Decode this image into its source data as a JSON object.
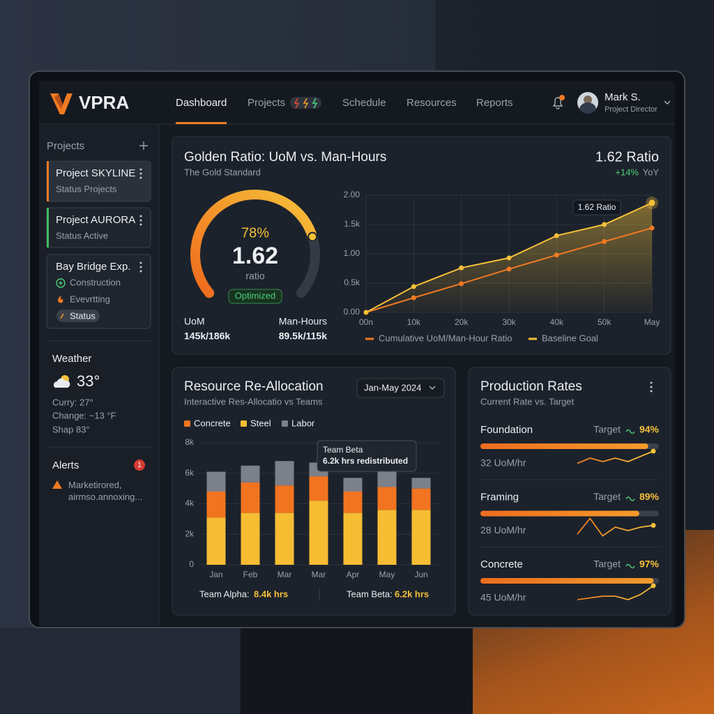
{
  "brand": "VPRA",
  "nav": [
    "Dashboard",
    "Projects",
    "Schedule",
    "Resources",
    "Reports"
  ],
  "user": {
    "name": "Mark S.",
    "role": "Project Director"
  },
  "sidebar": {
    "title": "Projects",
    "projects": [
      {
        "name": "Project SKYLINE",
        "status": "Status Projects"
      },
      {
        "name": "Project AURORA",
        "status": "Status Active"
      },
      {
        "name": "Bay Bridge Exp.",
        "items": [
          "Construction",
          "Evevrtting",
          "Status"
        ]
      }
    ],
    "weather": {
      "title": "Weather",
      "temp": "33°",
      "lines": [
        "Curry: 27°",
        "Change: ~13 °F",
        "Shap 83°"
      ]
    },
    "alerts": {
      "title": "Alerts",
      "count": "1",
      "text": "Marketirored, airmso.annoxing..."
    }
  },
  "golden": {
    "title": "Golden Ratio: UoM vs. Man-Hours",
    "subtitle": "The Gold Standard",
    "headline": "1.62 Ratio",
    "change": "+14%",
    "period": "YoY",
    "gauge": {
      "type": "gauge",
      "value": 78,
      "value_label": "78%",
      "lim": [
        0,
        100
      ],
      "reading": "1.62",
      "unit": "ratio",
      "badge": "Optimized"
    },
    "stats": [
      {
        "label": "UoM",
        "value": "145k/186k"
      },
      {
        "label": "Man-Hours",
        "value": "89.5k/115k"
      }
    ]
  },
  "chart_data": [
    {
      "type": "line",
      "categories": [
        "00n",
        "10k",
        "20k",
        "30k",
        "40k",
        "50k",
        "May"
      ],
      "ylim": [
        0,
        2
      ],
      "yticks": [
        {
          "value": 0,
          "label": "0.00"
        },
        {
          "value": 0.5,
          "label": "0.5k"
        },
        {
          "value": 1,
          "label": "1.00"
        },
        {
          "value": 1.5,
          "label": "1.5k"
        },
        {
          "value": 2,
          "label": "2.00"
        }
      ],
      "grid": true,
      "annotation": "1.62 Ratio",
      "series": [
        {
          "name": "Cumulative UoM/Man-Hour Ratio",
          "color": "#f07a22",
          "values": [
            0,
            0.25,
            0.49,
            0.74,
            0.98,
            1.21,
            1.44
          ]
        },
        {
          "name": "Baseline Goal",
          "color": "#f5c03a",
          "values": [
            0,
            0.44,
            0.76,
            0.93,
            1.31,
            1.5,
            1.87
          ]
        }
      ]
    },
    {
      "type": "stacked-bar",
      "title": "Resource Re-Allocation",
      "subtitle": "Interactive Res-Allocatio vs Teams",
      "period": "Jan-May 2024",
      "categories": [
        "Jan",
        "Feb",
        "Mar",
        "Mar",
        "Apr",
        "May",
        "Jun"
      ],
      "ylim": [
        0,
        8
      ],
      "yticks": [
        0,
        {
          "value": 2,
          "label": "2k"
        },
        {
          "value": 4,
          "label": "4k"
        },
        {
          "value": 6,
          "label": "6k"
        },
        {
          "value": 8,
          "label": "8k"
        }
      ],
      "grid": true,
      "series": [
        {
          "name": "Concrete",
          "color": "#f27420",
          "values": [
            1.7,
            2.0,
            1.8,
            1.6,
            1.4,
            1.5,
            1.4
          ]
        },
        {
          "name": "Steel",
          "color": "#f6bd33",
          "values": [
            3.1,
            3.4,
            3.4,
            4.2,
            3.4,
            3.6,
            3.6
          ]
        },
        {
          "name": "Labor",
          "color": "#7b8089",
          "values": [
            1.3,
            1.1,
            1.6,
            0.9,
            0.9,
            1.0,
            0.7
          ]
        }
      ],
      "tooltip": {
        "title": "Team Beta",
        "text": "6.2k hrs redistributed"
      },
      "totals": [
        {
          "label": "Team Alpha:",
          "value": "8.4k hrs"
        },
        {
          "label": "Team Beta:",
          "value": "6.2k hrs"
        }
      ]
    }
  ],
  "production": {
    "title": "Production Rates",
    "subtitle": "Current Rate vs. Target",
    "lim": [
      0,
      100
    ],
    "trend_lim": [
      0,
      10
    ],
    "items": [
      {
        "name": "Foundation",
        "target_label": "Target",
        "value": 94,
        "value_label": "94%",
        "rate": "32 UoM/hr",
        "trend": [
          3,
          6,
          4,
          6,
          4,
          7,
          10
        ]
      },
      {
        "name": "Framing",
        "target_label": "Target",
        "value": 89,
        "value_label": "89%",
        "rate": "28 UoM/hr",
        "trend": [
          1,
          10,
          0,
          5,
          3,
          5,
          6
        ]
      },
      {
        "name": "Concrete",
        "target_label": "Target",
        "value": 97,
        "value_label": "97%",
        "rate": "45 UoM/hr",
        "trend": [
          2,
          3,
          4,
          4,
          2,
          5,
          10
        ]
      }
    ]
  }
}
